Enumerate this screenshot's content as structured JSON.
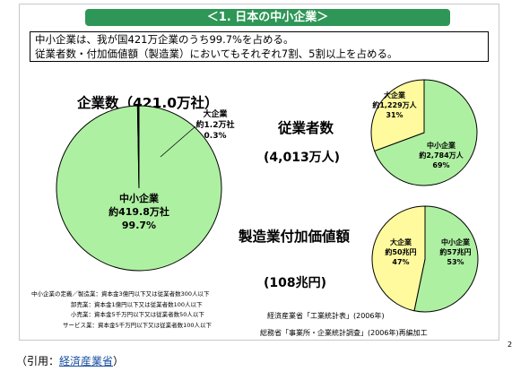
{
  "slide": {
    "title": "＜1. 日本の中小企業＞",
    "intro_lines": [
      "中小企業は、我が国421万企業のうち99.7%を占める。",
      "従業者数・付加価値額（製造業）においてもそれぞれ7割、5割以上を占める。"
    ],
    "charts_headers": {
      "enterprises": "企業数（421.0万社）",
      "employees": "従業者数",
      "employees_total": "(4,013万人)",
      "value_added": "製造業付加価値額",
      "value_added_total": "(108兆円)"
    },
    "definitions": [
      "中小企業の定義／製造業：資本金3億円以下又は従業者数300人以下",
      "卸売業：資本金1億円以下又は従業者数100人以下",
      "小売業：資本金5千万円以下又は従業者数50人以下",
      "サービス業：資本金5千万円以下又は従業者数100人以下"
    ],
    "sources": [
      "経済産業省「工業統計表」(2006年)",
      "総務省「事業所・企業統計調査」(2006年)再編加工"
    ],
    "page_mark": "2"
  },
  "citation": {
    "prefix": "（引用：",
    "link_text": "経済産業省",
    "suffix": "）"
  },
  "colors": {
    "banner": "#2e9656",
    "sme": "#aef0a2",
    "large": "#fffa9e",
    "link": "#1a4fa0"
  },
  "chart_data": [
    {
      "type": "pie",
      "title": "企業数（421.0万社）",
      "slices": [
        {
          "label": "中小企業",
          "value": 419.8,
          "value_text": "約419.8万社",
          "percent_text": "99.7%",
          "color": "#aef0a2"
        },
        {
          "label": "大企業",
          "value": 1.2,
          "value_text": "約1.2万社",
          "percent_text": "0.3%",
          "color": "#fffa9e"
        }
      ]
    },
    {
      "type": "pie",
      "title": "従業者数",
      "subtitle": "(4,013万人)",
      "slices": [
        {
          "label": "中小企業",
          "value": 2784,
          "value_text": "約2,784万人",
          "percent_text": "69%",
          "color": "#aef0a2"
        },
        {
          "label": "大企業",
          "value": 1229,
          "value_text": "約1,229万人",
          "percent_text": "31%",
          "color": "#fffa9e"
        }
      ]
    },
    {
      "type": "pie",
      "title": "製造業付加価値額",
      "subtitle": "(108兆円)",
      "slices": [
        {
          "label": "中小企業",
          "value": 57,
          "value_text": "約57兆円",
          "percent_text": "53%",
          "color": "#aef0a2"
        },
        {
          "label": "大企業",
          "value": 50,
          "value_text": "約50兆円",
          "percent_text": "47%",
          "color": "#fffa9e"
        }
      ]
    }
  ]
}
